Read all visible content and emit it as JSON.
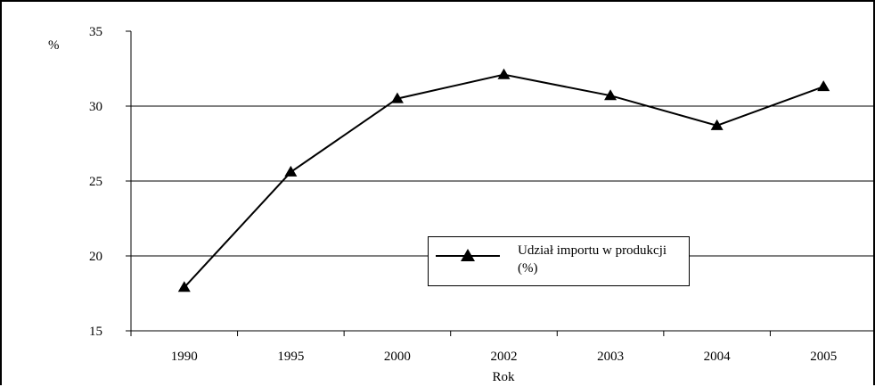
{
  "chart_data": {
    "type": "line",
    "title": "",
    "xlabel": "Rok",
    "ylabel": "%",
    "ylim": [
      15,
      35
    ],
    "yticks": [
      "15",
      "20",
      "25",
      "30",
      "35"
    ],
    "categories": [
      "1990",
      "1995",
      "2000",
      "2002",
      "2003",
      "2004",
      "2005"
    ],
    "series": [
      {
        "name": "Udział importu w produkcji (%)",
        "values": [
          17.9,
          25.6,
          30.5,
          32.1,
          30.7,
          28.7,
          31.3
        ],
        "color": "#000000",
        "marker": "triangle"
      }
    ],
    "grid": "horizontal",
    "legend_position": "center-right"
  }
}
